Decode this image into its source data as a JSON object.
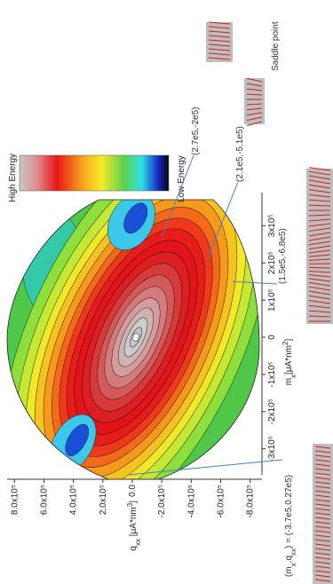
{
  "chart_data": {
    "type": "contour",
    "x_label_parts": [
      "m",
      "x",
      "[μA*nm",
      "2",
      "]"
    ],
    "y_label_parts": [
      "q",
      "xx",
      " [μA*nm",
      "3",
      "]"
    ],
    "xlim": [
      -370000,
      370000
    ],
    "ylim": [
      -850000,
      850000
    ],
    "xticks": [
      {
        "value": -300000,
        "label": "-3x10⁵"
      },
      {
        "value": -200000,
        "label": "-2x10⁵"
      },
      {
        "value": -100000,
        "label": "-1x10⁵"
      },
      0,
      {
        "value": 100000,
        "label": "1x10⁵"
      },
      {
        "value": 200000,
        "label": "2x10⁵"
      },
      {
        "value": 300000,
        "label": "3x10⁵"
      }
    ],
    "yticks": [
      {
        "value": 800000,
        "label": "8.0x10⁵"
      },
      {
        "value": 600000,
        "label": "6.0x10⁵"
      },
      {
        "value": 400000,
        "label": "4.0x10⁵"
      },
      {
        "value": 200000,
        "label": "2.0x10⁵"
      },
      {
        "value": 0,
        "label": "0.0"
      },
      {
        "value": -200000,
        "label": "-2.0x10⁵"
      },
      {
        "value": -400000,
        "label": "-4.0x10⁵"
      },
      {
        "value": -600000,
        "label": "-6.0x10⁵"
      },
      {
        "value": -800000,
        "label": "-8.0x10⁵"
      }
    ],
    "colorbar": {
      "high_label": "High Energy",
      "low_label": "Low Energy"
    },
    "annotations": [
      {
        "text": "(2.7e5,-2e5)"
      },
      {
        "text": "(2.1e5,-5.1e5)"
      },
      {
        "text": "(1.5e5,-6.8e5)"
      },
      {
        "parts": [
          "(m",
          "x",
          ",q",
          "xx",
          ") = (-3.7e5,0.27e5)"
        ]
      },
      {
        "text": "Saddle point"
      }
    ]
  }
}
